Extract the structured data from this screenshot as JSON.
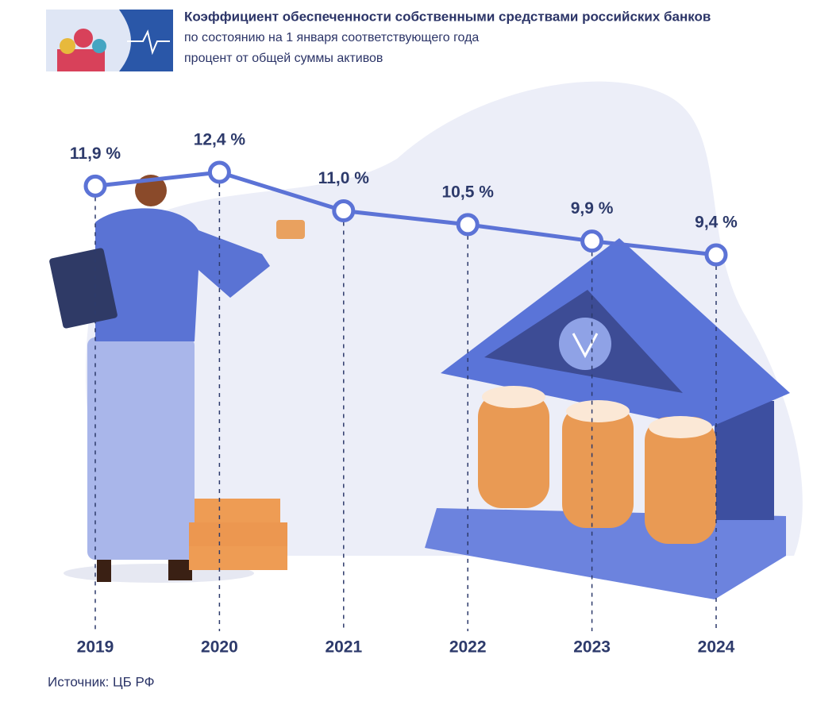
{
  "chart_data": {
    "type": "line",
    "title": "Коэффициент обеспеченности собственными средствами российских банков",
    "subtitle": [
      "по состоянию на 1 января соответствующего года",
      "процент от общей суммы активов"
    ],
    "categories": [
      "2019",
      "2020",
      "2021",
      "2022",
      "2023",
      "2024"
    ],
    "series": [
      {
        "color": "#5c73d6",
        "values": [
          11.9,
          12.4,
          11.0,
          10.5,
          9.9,
          9.4
        ],
        "value_labels": [
          "11,9 %",
          "12,4 %",
          "11,0 %",
          "10,5 %",
          "9,9 %",
          "9,4 %"
        ]
      }
    ],
    "source": "Источник: ЦБ РФ"
  }
}
